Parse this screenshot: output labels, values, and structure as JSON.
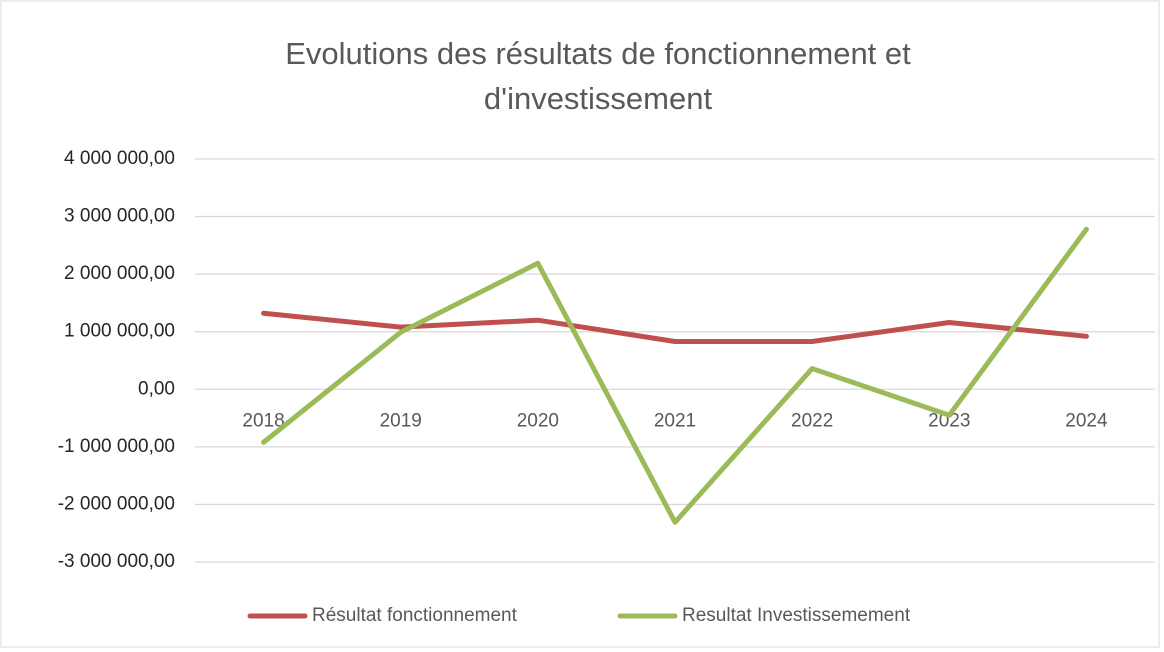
{
  "chart_data": {
    "type": "line",
    "title_lines": [
      "Evolutions des résultats de fonctionnement et",
      "d'investissement"
    ],
    "categories": [
      "2018",
      "2019",
      "2020",
      "2021",
      "2022",
      "2023",
      "2024"
    ],
    "series": [
      {
        "name": "Résultat fonctionnement",
        "color": "#c0504d",
        "values": [
          1320000,
          1080000,
          1200000,
          830000,
          830000,
          1160000,
          920000
        ]
      },
      {
        "name": "Resultat Investissemement",
        "color": "#9bbb59",
        "values": [
          -920000,
          990000,
          2190000,
          -2310000,
          360000,
          -450000,
          2780000
        ]
      }
    ],
    "ylim": [
      -3000000,
      4000000
    ],
    "yticks": [
      {
        "value": -3000000,
        "label": "-3 000 000,00"
      },
      {
        "value": -2000000,
        "label": "-2 000 000,00"
      },
      {
        "value": -1000000,
        "label": "-1 000 000,00"
      },
      {
        "value": 0,
        "label": "0,00"
      },
      {
        "value": 1000000,
        "label": "1 000 000,00"
      },
      {
        "value": 2000000,
        "label": "2 000 000,00"
      },
      {
        "value": 3000000,
        "label": "3 000 000,00"
      },
      {
        "value": 4000000,
        "label": "4 000 000,00"
      }
    ],
    "grid": true,
    "legend": "bottom"
  }
}
